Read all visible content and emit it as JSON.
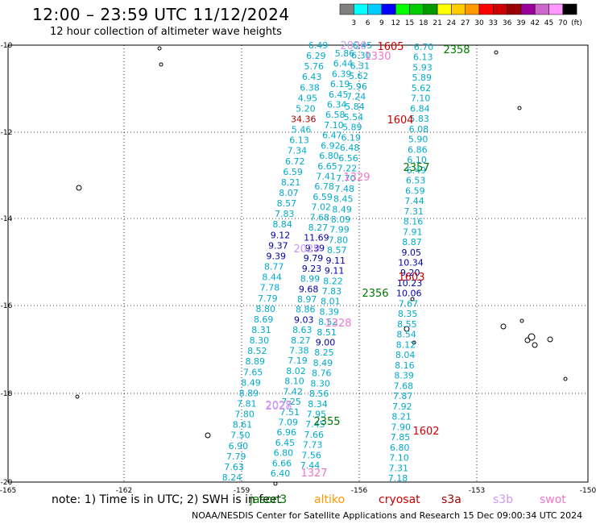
{
  "title": "12:00 – 23:59 UTC 11/12/2024",
  "subtitle": "12 hour collection of altimeter wave heights",
  "legend": {
    "unit": "(ft)",
    "ticks": [
      "3",
      "6",
      "9",
      "12",
      "15",
      "18",
      "21",
      "24",
      "27",
      "30",
      "33",
      "36",
      "39",
      "42",
      "45",
      "70"
    ],
    "colors": [
      "#7f7f7f",
      "#00ffff",
      "#00ccff",
      "#0000ff",
      "#00ff00",
      "#00cc00",
      "#009900",
      "#ffff00",
      "#ffcc00",
      "#ff9900",
      "#ff0000",
      "#cc0000",
      "#990000",
      "#990099",
      "#cc66cc",
      "#ff99ff",
      "#000000"
    ]
  },
  "axes": {
    "lon_ticks": [
      "-165",
      "-162",
      "-159",
      "-156",
      "-153",
      "-150"
    ],
    "lat_ticks": [
      "-10",
      "-12",
      "-14",
      "-16",
      "-18",
      "-20"
    ]
  },
  "time_labels": [
    {
      "t": "1605",
      "color": "#cc0000"
    },
    {
      "t": "1604",
      "color": "#cc0000"
    },
    {
      "t": "1603",
      "color": "#cc0000"
    },
    {
      "t": "1602",
      "color": "#cc0000"
    },
    {
      "t": "2358",
      "color": "#007700"
    },
    {
      "t": "2357",
      "color": "#007700"
    },
    {
      "t": "2356",
      "color": "#007700"
    },
    {
      "t": "2355",
      "color": "#007700"
    },
    {
      "t": "1330",
      "color": "#ee77cc"
    },
    {
      "t": "1329",
      "color": "#ee77cc"
    },
    {
      "t": "1328",
      "color": "#ee77cc"
    },
    {
      "t": "1327",
      "color": "#ee77cc"
    },
    {
      "t": "2030",
      "color": "#cc99ee"
    },
    {
      "t": "2029",
      "color": "#cc99ee"
    },
    {
      "t": "2028",
      "color": "#cc99ee"
    },
    {
      "t": "2027",
      "color": "#cc99ee"
    }
  ],
  "tracks": [
    {
      "name": "trackA",
      "color": "#00aacc",
      "values": [
        "6.49",
        "6.29",
        "5.76",
        "6.43",
        "6.38",
        "4.95",
        "5.20",
        "34.36",
        "5.46",
        "6.13",
        "7.34",
        "6.72",
        "6.59",
        "8.21",
        "8.07",
        "8.57",
        "7.83",
        "8.84",
        "9.12",
        "9.37",
        "9.39",
        "8.77",
        "8.44",
        "7.78",
        "7.79",
        "8.80",
        "8.69",
        "8.31",
        "8.30",
        "8.52",
        "8.89",
        "7.65",
        "8.49",
        "8.89",
        "7.81",
        "7.80",
        "8.61",
        "7.50",
        "6.90",
        "7.79",
        "7.63",
        "8.24"
      ]
    },
    {
      "name": "trackB",
      "color": "#00aacc",
      "values": [
        "5.86",
        "6.44",
        "6.39",
        "6.19",
        "6.45",
        "6.34",
        "6.58",
        "7.10",
        "6.47",
        "6.92",
        "6.80",
        "6.65",
        "7.41",
        "6.78",
        "6.59",
        "7.02",
        "7.68",
        "8.27",
        "11.69",
        "9.39",
        "9.79",
        "9.23",
        "8.99",
        "9.68",
        "8.97",
        "8.86",
        "9.03",
        "8.63",
        "8.27",
        "7.38",
        "7.19",
        "8.02",
        "8.10",
        "7.42",
        "7.25",
        "7.51",
        "7.09",
        "6.96",
        "6.45",
        "6.80",
        "6.66",
        "6.40"
      ]
    },
    {
      "name": "trackC",
      "color": "#00aacc",
      "values": [
        "6.45",
        "6.30",
        "6.31",
        "5.62",
        "5.96",
        "7.24",
        "5.84",
        "5.54",
        "5.89",
        "6.19",
        "6.48",
        "6.56",
        "7.22",
        "7.70",
        "7.48",
        "8.45",
        "8.49",
        "8.09",
        "7.99",
        "7.80",
        "8.57",
        "9.11",
        "9.11",
        "8.22",
        "7.83",
        "8.01",
        "8.39",
        "8.52",
        "8.51",
        "9.00",
        "8.25",
        "8.49",
        "8.76",
        "8.30",
        "8.56",
        "8.34",
        "7.95",
        "7.45",
        "7.66",
        "7.73",
        "7.56",
        "7.44"
      ]
    },
    {
      "name": "trackD",
      "color": "#00aacc",
      "values": [
        "6.70",
        "6.13",
        "5.93",
        "5.89",
        "5.62",
        "7.10",
        "6.84",
        "5.83",
        "6.08",
        "5.90",
        "6.86",
        "6.10",
        "6.49",
        "6.53",
        "6.59",
        "7.44",
        "7.31",
        "8.16",
        "7.91",
        "8.87",
        "9.05",
        "10.34",
        "9.20",
        "10.23",
        "10.06",
        "7.67",
        "8.35",
        "8.55",
        "8.54",
        "8.12",
        "8.04",
        "8.16",
        "8.39",
        "7.68",
        "7.87",
        "7.92",
        "8.21",
        "7.90",
        "7.85",
        "6.80",
        "7.10",
        "7.31",
        "7.18"
      ]
    }
  ],
  "note": "note: 1) Time is in UTC; 2) SWH is in feet",
  "satellites": [
    {
      "name": "jason3",
      "color": "#007700"
    },
    {
      "name": "altiko",
      "color": "#ff9900"
    },
    {
      "name": "cryosat",
      "color": "#cc0000"
    },
    {
      "name": "s3a",
      "color": "#990000"
    },
    {
      "name": "s3b",
      "color": "#cc99ee"
    },
    {
      "name": "swot",
      "color": "#ee77cc"
    }
  ],
  "footer": "NOAA/NESDIS Center for Satellite Applications and Research   15 Dec 09:00:34 UTC 2024"
}
